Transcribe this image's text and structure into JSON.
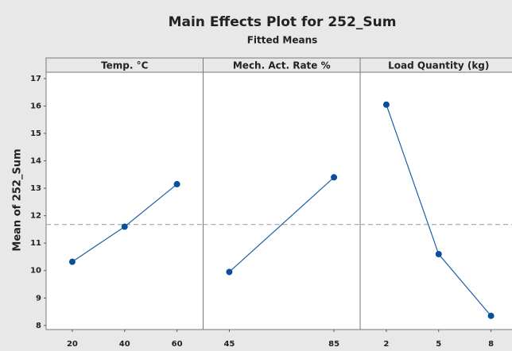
{
  "chart_data": {
    "type": "line",
    "title": "Main Effects Plot for 252_Sum",
    "subtitle": "Fitted Means",
    "ylabel": "Mean of 252_Sum",
    "ylim": [
      7.85,
      17.23
    ],
    "yticks": [
      8,
      9,
      10,
      11,
      12,
      13,
      14,
      15,
      16,
      17
    ],
    "reference_line": 11.68,
    "color": "#1f5fa8",
    "marker_color": "#0b4f9c",
    "panels": [
      {
        "title": "Temp. °C",
        "x": [
          20,
          40,
          60
        ],
        "values": [
          10.32,
          11.6,
          13.15
        ],
        "xlim": [
          10,
          70
        ],
        "xticks": [
          20,
          40,
          60
        ]
      },
      {
        "title": "Mech. Act. Rate %",
        "x": [
          45,
          85
        ],
        "values": [
          9.95,
          13.4
        ],
        "xlim": [
          35,
          95
        ],
        "xticks": [
          45,
          85
        ]
      },
      {
        "title": "Load Quantity (kg)",
        "x": [
          2,
          5,
          8
        ],
        "values": [
          16.05,
          10.6,
          8.35
        ],
        "xlim": [
          0.5,
          9.5
        ],
        "xticks": [
          2,
          5,
          8
        ]
      }
    ]
  }
}
